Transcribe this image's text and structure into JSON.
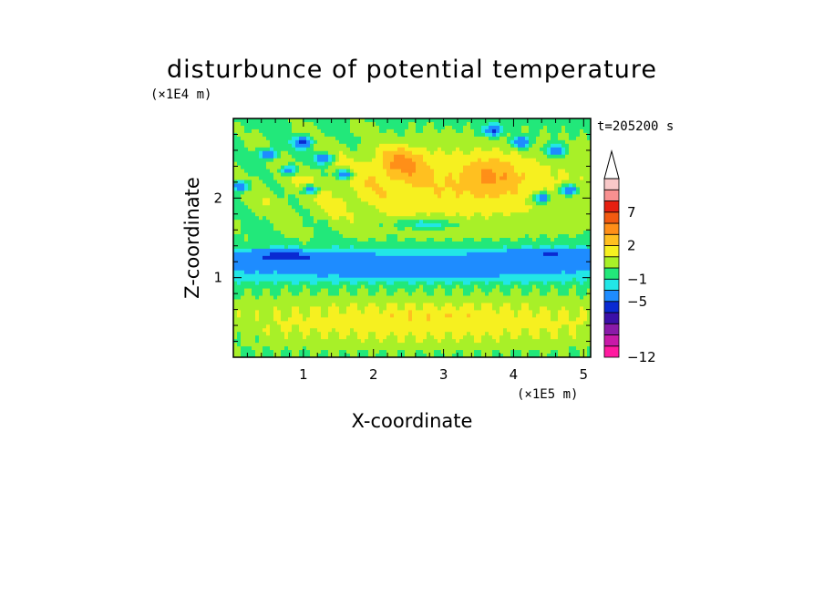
{
  "chart_data": {
    "type": "heatmap",
    "title": "disturbunce of potential temperature",
    "xlabel": "X-coordinate",
    "ylabel": "Z-coordinate",
    "x_unit": "(×1E5 m)",
    "y_unit": "(×1E4 m)",
    "time_label": "t=205200 s",
    "xlim": [
      0,
      5.1
    ],
    "ylim": [
      0,
      3.0
    ],
    "x_ticks": [
      1,
      2,
      3,
      4,
      5
    ],
    "y_ticks": [
      1,
      2
    ],
    "colorbar": {
      "colors": [
        "#ff1aa0",
        "#c81aa8",
        "#8a1aa8",
        "#3b10a8",
        "#0a2ad2",
        "#1e8cff",
        "#22e6e6",
        "#22e87a",
        "#a8f028",
        "#f6f020",
        "#ffc020",
        "#ff8f18",
        "#f25a10",
        "#e62010",
        "#f89090",
        "#f8c8c8"
      ],
      "labeled_levels": [
        {
          "value": "-12",
          "index": 0
        },
        {
          "value": "-5",
          "index": 5
        },
        {
          "value": "-1",
          "index": 7
        },
        {
          "value": "2",
          "index": 10
        },
        {
          "value": "7",
          "index": 13
        }
      ],
      "extend": "max"
    }
  }
}
